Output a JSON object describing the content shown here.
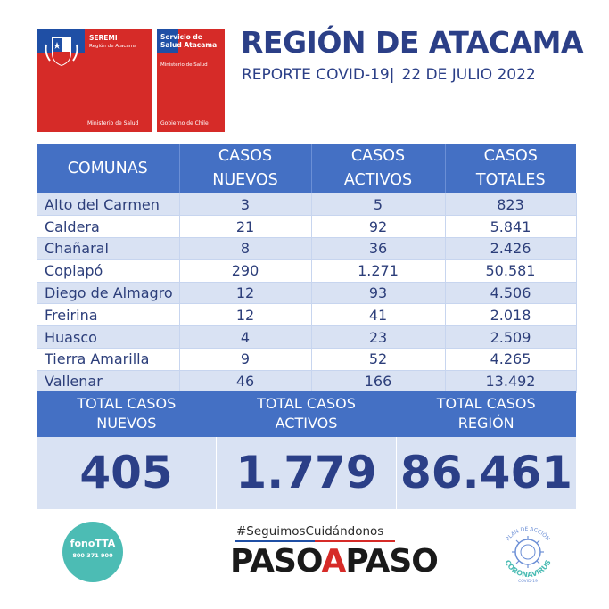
{
  "header": {
    "logo_seremi": {
      "title": "SEREMI",
      "subtitle": "Región de Atacama",
      "footer": "Ministerio de Salud"
    },
    "logo_servicio": {
      "title": "Servicio de Salud Atacama",
      "subtitle": "Ministerio de Salud",
      "footer": "Gobierno de Chile"
    },
    "title": "REGIÓN DE ATACAMA",
    "report_label": "REPORTE COVID-19|",
    "report_date": "22 DE JULIO 2022"
  },
  "table": {
    "columns": [
      "COMUNAS",
      "CASOS NUEVOS",
      "CASOS ACTIVOS",
      "CASOS TOTALES"
    ],
    "rows": [
      {
        "comuna": "Alto del Carmen",
        "nuevos": "3",
        "activos": "5",
        "totales": "823"
      },
      {
        "comuna": "Caldera",
        "nuevos": "21",
        "activos": "92",
        "totales": "5.841"
      },
      {
        "comuna": "Chañaral",
        "nuevos": "8",
        "activos": "36",
        "totales": "2.426"
      },
      {
        "comuna": "Copiapó",
        "nuevos": "290",
        "activos": "1.271",
        "totales": "50.581"
      },
      {
        "comuna": "Diego de Almagro",
        "nuevos": "12",
        "activos": "93",
        "totales": "4.506"
      },
      {
        "comuna": "Freirina",
        "nuevos": "12",
        "activos": "41",
        "totales": "2.018"
      },
      {
        "comuna": "Huasco",
        "nuevos": "4",
        "activos": "23",
        "totales": "2.509"
      },
      {
        "comuna": "Tierra Amarilla",
        "nuevos": "9",
        "activos": "52",
        "totales": "4.265"
      },
      {
        "comuna": "Vallenar",
        "nuevos": "46",
        "activos": "166",
        "totales": "13.492"
      }
    ]
  },
  "totals": {
    "nuevos": {
      "label_1": "TOTAL CASOS",
      "label_2": "NUEVOS",
      "value": "405"
    },
    "activos": {
      "label_1": "TOTAL CASOS",
      "label_2": "ACTIVOS",
      "value": "1.779"
    },
    "region": {
      "label_1": "TOTAL CASOS",
      "label_2": "REGIÓN",
      "value": "86.461"
    }
  },
  "footer": {
    "fonotta_name": "fonoTTA",
    "fonotta_number": "800 371 900",
    "hashtag": "#SeguimosCuidándonos",
    "paso_1": "PASO",
    "paso_a": "A",
    "paso_2": "PASO",
    "plan_top": "PLAN DE ACCIÓN",
    "plan_main": "CORONAVIRUS",
    "plan_bottom": "COVID-19"
  },
  "colors": {
    "header_blue": "#4470c4",
    "row_tint": "#d9e2f3",
    "title_navy": "#2b3f87",
    "chile_red": "#d62b28",
    "chile_blue": "#1f4fa5",
    "fonotta_teal": "#4cbcb4"
  }
}
